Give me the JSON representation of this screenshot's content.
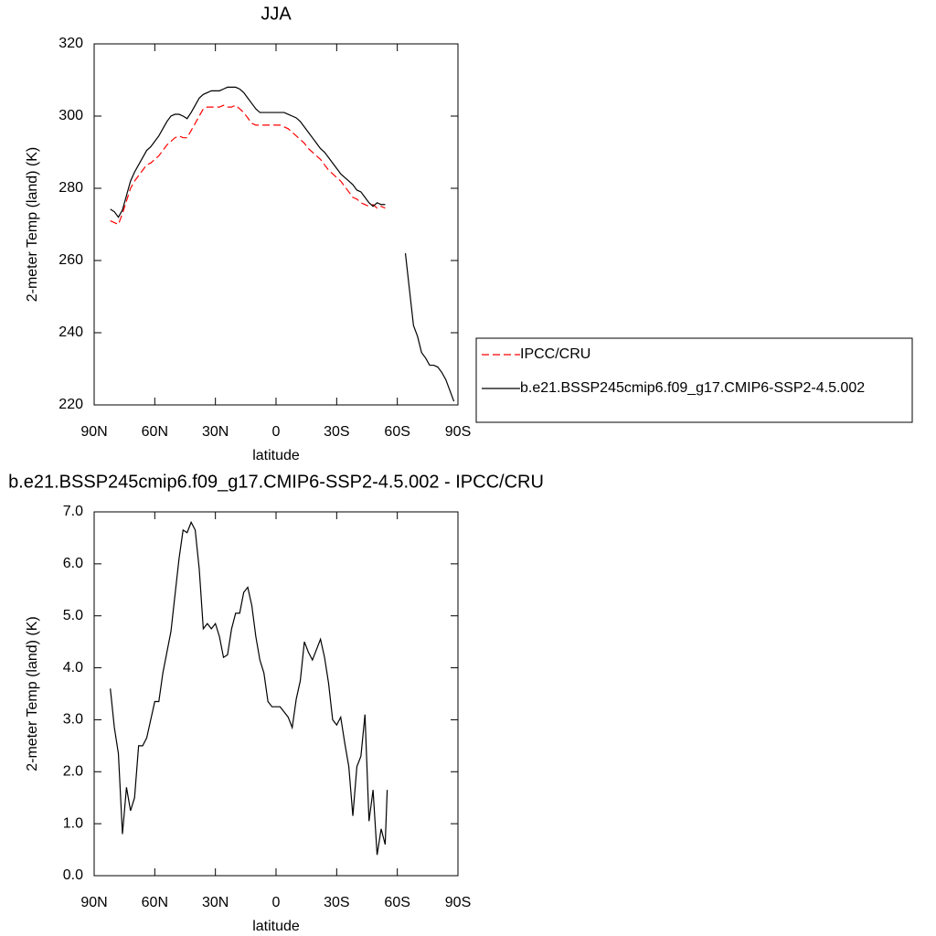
{
  "chart_data": [
    {
      "type": "line",
      "title": "JJA",
      "xlabel": "latitude",
      "ylabel": "2-meter Temp (land) (K)",
      "xlim": [
        90,
        -90
      ],
      "xticks": [
        {
          "value": 90,
          "label": "90N"
        },
        {
          "value": 60,
          "label": "60N"
        },
        {
          "value": 30,
          "label": "30N"
        },
        0,
        {
          "value": -30,
          "label": "30S"
        },
        {
          "value": -60,
          "label": "60S"
        },
        {
          "value": -90,
          "label": "90S"
        }
      ],
      "ylim": [
        220,
        320
      ],
      "yticks": [
        220,
        240,
        260,
        280,
        300,
        320
      ],
      "legend": "right",
      "x": [
        82,
        80,
        78,
        76,
        74,
        72,
        70,
        68,
        66,
        64,
        62,
        60,
        58,
        56,
        54,
        52,
        50,
        48,
        46,
        44,
        42,
        40,
        38,
        36,
        34,
        32,
        30,
        28,
        26,
        24,
        22,
        20,
        18,
        16,
        14,
        12,
        10,
        8,
        6,
        4,
        2,
        0,
        -2,
        -4,
        -6,
        -8,
        -10,
        -12,
        -14,
        -16,
        -18,
        -20,
        -22,
        -24,
        -26,
        -28,
        -30,
        -32,
        -34,
        -36,
        -38,
        -40,
        -42,
        -44,
        -46,
        -48,
        -50,
        -52,
        -54,
        -56,
        -58,
        -60,
        -62,
        -64,
        -66,
        -68,
        -70,
        -72,
        -74,
        -76,
        -78,
        -80,
        -82,
        -84,
        -86,
        -88
      ],
      "series": [
        {
          "name": "IPCC/CRU",
          "color": "#ff0000",
          "dash": "dashed",
          "values": [
            271,
            270.5,
            270,
            273,
            276.5,
            280,
            282,
            283.5,
            285,
            286.5,
            287,
            288,
            289,
            290.5,
            292,
            293,
            294,
            294.5,
            294,
            294,
            296,
            298,
            300,
            302,
            302.5,
            302.5,
            302.5,
            302.5,
            303,
            302.5,
            302.5,
            303,
            302,
            301,
            299.5,
            298,
            297.5,
            297.5,
            297.5,
            297.5,
            297.5,
            297.5,
            297.5,
            297,
            296.5,
            295.5,
            294.5,
            293.5,
            292.5,
            291,
            290,
            289,
            288,
            286.5,
            285,
            284,
            283,
            282,
            280.5,
            279,
            277.5,
            277,
            276,
            275.5,
            275,
            275.5,
            274.5,
            275,
            274.5,
            null,
            null,
            null,
            null,
            null,
            null,
            null,
            null,
            null,
            null,
            null,
            null,
            null,
            null,
            null,
            null,
            null
          ]
        },
        {
          "name": "b.e21.BSSP245cmip6.f09_g17.CMIP6-SSP2-4.5.002",
          "color": "#000000",
          "dash": "solid",
          "values": [
            274.2,
            273.5,
            272,
            274,
            278,
            282,
            284.5,
            286.5,
            288.5,
            290.5,
            291.5,
            293,
            294.5,
            296.5,
            298.5,
            300,
            300.5,
            300.5,
            300,
            299.3,
            301,
            303,
            305,
            306,
            306.5,
            307,
            307,
            307,
            307.5,
            308,
            308,
            308,
            307.5,
            306.5,
            305,
            303.5,
            302,
            301,
            301,
            301,
            301,
            301,
            301,
            301,
            300.5,
            300,
            299.5,
            298.5,
            297,
            295.5,
            294,
            292.5,
            291,
            290,
            288.5,
            287,
            285.5,
            284,
            283,
            282,
            281,
            279.5,
            279,
            277.5,
            276,
            275,
            276,
            275.5,
            275.5,
            null,
            null,
            null,
            null,
            262,
            252,
            242,
            239,
            234.5,
            233,
            231,
            231,
            230.5,
            229,
            227,
            224,
            221
          ]
        }
      ]
    },
    {
      "type": "line",
      "title": "b.e21.BSSP245cmip6.f09_g17.CMIP6-SSP2-4.5.002 - IPCC/CRU",
      "xlabel": "latitude",
      "ylabel": "2-meter Temp (land) (K)",
      "xlim": [
        90,
        -90
      ],
      "xticks": [
        {
          "value": 90,
          "label": "90N"
        },
        {
          "value": 60,
          "label": "60N"
        },
        {
          "value": 30,
          "label": "30N"
        },
        0,
        {
          "value": -30,
          "label": "30S"
        },
        {
          "value": -60,
          "label": "60S"
        },
        {
          "value": -90,
          "label": "90S"
        }
      ],
      "ylim": [
        0,
        7
      ],
      "yticks": [
        {
          "value": 0,
          "label": "0.0"
        },
        {
          "value": 1,
          "label": "1.0"
        },
        {
          "value": 2,
          "label": "2.0"
        },
        {
          "value": 3,
          "label": "3.0"
        },
        {
          "value": 4,
          "label": "4.0"
        },
        {
          "value": 5,
          "label": "5.0"
        },
        {
          "value": 6,
          "label": "6.0"
        },
        {
          "value": 7,
          "label": "7.0"
        }
      ],
      "x": [
        82,
        80,
        78,
        76,
        74,
        72,
        70,
        68,
        66,
        64,
        62,
        60,
        58,
        56,
        54,
        52,
        50,
        48,
        46,
        44,
        42,
        40,
        38,
        36,
        34,
        32,
        30,
        28,
        26,
        24,
        22,
        20,
        18,
        16,
        14,
        12,
        10,
        8,
        6,
        4,
        2,
        0,
        -2,
        -4,
        -6,
        -8,
        -10,
        -12,
        -14,
        -16,
        -18,
        -20,
        -22,
        -24,
        -26,
        -28,
        -30,
        -32,
        -34,
        -36,
        -38,
        -40,
        -42,
        -44,
        -46,
        -48,
        -50,
        -52,
        -54,
        -55
      ],
      "series": [
        {
          "color": "#000000",
          "dash": "solid",
          "values": [
            3.6,
            2.85,
            2.35,
            0.8,
            1.7,
            1.25,
            1.5,
            2.5,
            2.5,
            2.65,
            3.0,
            3.35,
            3.35,
            3.9,
            4.3,
            4.7,
            5.4,
            6.1,
            6.65,
            6.6,
            6.8,
            6.65,
            5.9,
            4.75,
            4.85,
            4.75,
            4.85,
            4.6,
            4.2,
            4.25,
            4.75,
            5.05,
            5.05,
            5.45,
            5.55,
            5.2,
            4.6,
            4.15,
            3.9,
            3.35,
            3.25,
            3.25,
            3.25,
            3.15,
            3.05,
            2.85,
            3.4,
            3.75,
            4.5,
            4.3,
            4.15,
            4.35,
            4.55,
            4.2,
            3.7,
            3.0,
            2.9,
            3.05,
            2.55,
            2.1,
            1.15,
            2.1,
            2.3,
            3.1,
            1.05,
            1.65,
            0.4,
            0.9,
            0.6,
            1.65
          ]
        }
      ]
    }
  ]
}
